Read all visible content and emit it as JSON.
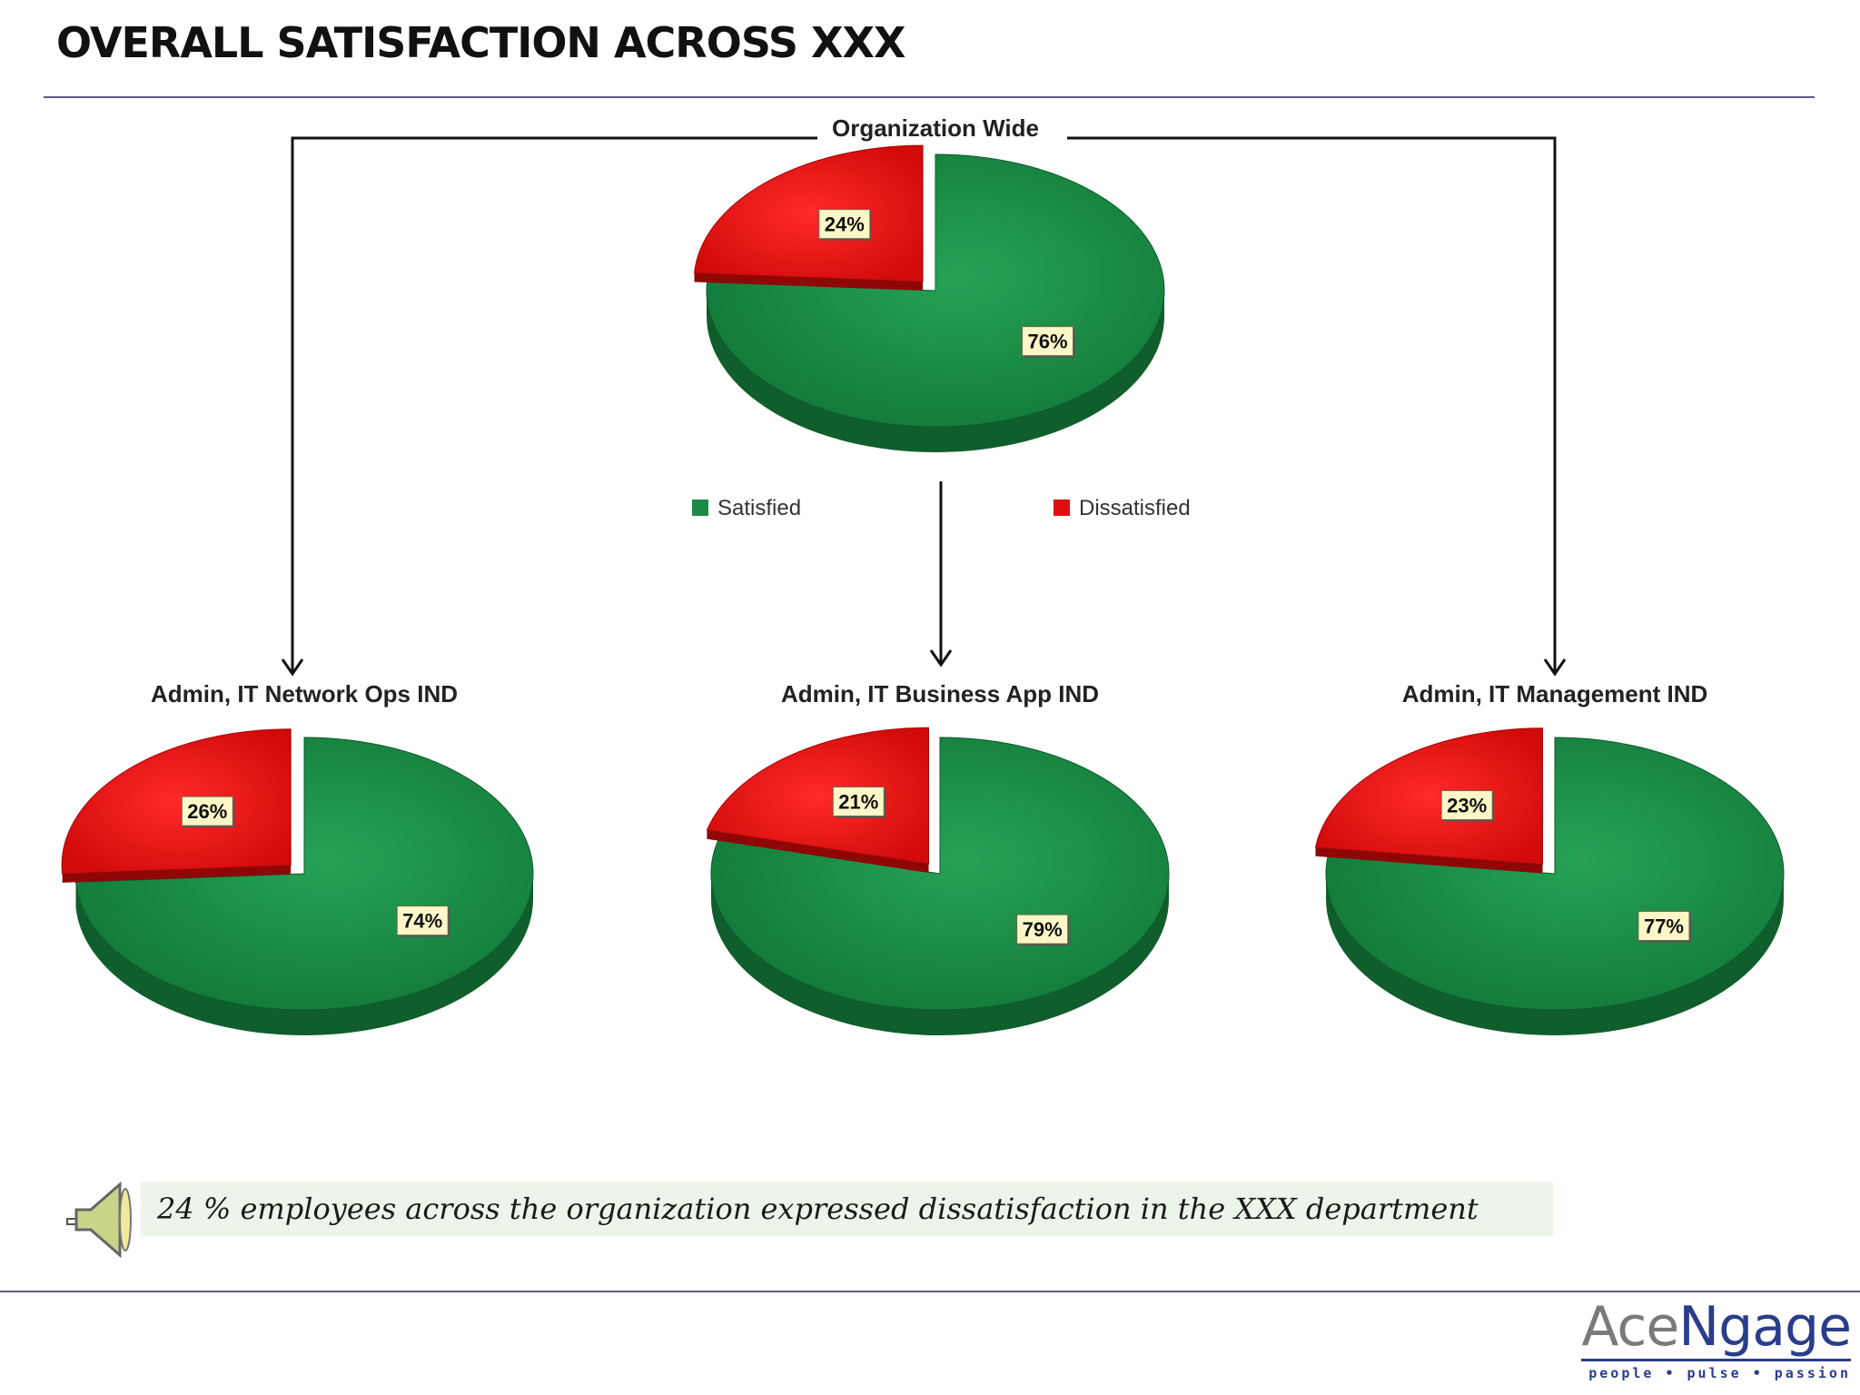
{
  "page": {
    "title": "OVERALL SATISFACTION ACROSS XXX"
  },
  "chart_data": {
    "type": "pie",
    "legend": {
      "placement": "below-top-pie",
      "entries": [
        {
          "name": "Satisfied",
          "color": "#1c8a45"
        },
        {
          "name": "Dissatisfied",
          "color": "#e00f0f"
        }
      ]
    },
    "pies": [
      {
        "key": "org",
        "label": "Organization Wide",
        "slices": [
          {
            "name": "Satisfied",
            "value": 76,
            "label": "76%"
          },
          {
            "name": "Dissatisfied",
            "value": 24,
            "label": "24%"
          }
        ]
      },
      {
        "key": "network",
        "label": "Admin, IT Network Ops IND",
        "slices": [
          {
            "name": "Satisfied",
            "value": 74,
            "label": "74%"
          },
          {
            "name": "Dissatisfied",
            "value": 26,
            "label": "26%"
          }
        ]
      },
      {
        "key": "business",
        "label": "Admin, IT Business App IND",
        "slices": [
          {
            "name": "Satisfied",
            "value": 79,
            "label": "79%"
          },
          {
            "name": "Dissatisfied",
            "value": 21,
            "label": "21%"
          }
        ]
      },
      {
        "key": "management",
        "label": "Admin, IT Management IND",
        "slices": [
          {
            "name": "Satisfied",
            "value": 77,
            "label": "77%"
          },
          {
            "name": "Dissatisfied",
            "value": 23,
            "label": "23%"
          }
        ]
      }
    ]
  },
  "note": {
    "text": "24 % employees across the organization expressed dissatisfaction in the XXX department",
    "icon": "speaker-icon"
  },
  "logo": {
    "ace": "Ace",
    "ngage": "Ngage",
    "tagline": "people • pulse • passion"
  }
}
